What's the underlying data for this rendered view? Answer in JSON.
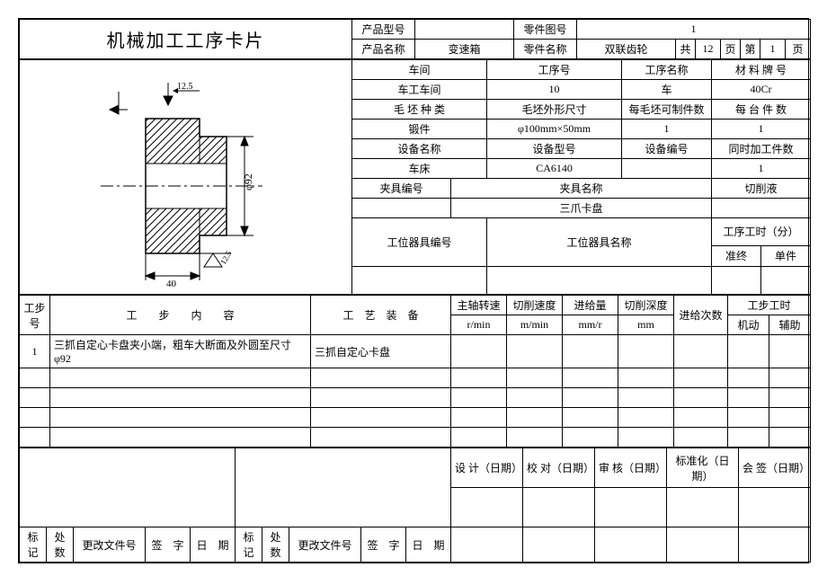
{
  "header": {
    "title": "机械加工工序卡片",
    "r1c1": "产品型号",
    "r1v1": "",
    "r1c2": "零件图号",
    "r1v2": "1",
    "r2c1": "产品名称",
    "r2v1": "变速箱",
    "r2c2": "零件名称",
    "r2v2": "双联齿轮",
    "total_pre": "共",
    "total_pages": "12",
    "page_unit": "页",
    "page_pre": "第",
    "page_no": "1",
    "page_unit2": "页"
  },
  "info": {
    "h_workshop": "车间",
    "h_procno": "工序号",
    "h_procname": "工序名称",
    "h_material": "材 料 牌 号",
    "workshop": "车工车间",
    "procno": "10",
    "procname": "车",
    "material": "40Cr",
    "h_blank": "毛 坯 种 类",
    "h_blanksize": "毛坯外形尺寸",
    "h_perblank": "每毛坯可制件数",
    "h_perunit": "每 台 件 数",
    "blank": "锻件",
    "blanksize": "φ100mm×50mm",
    "perblank": "1",
    "perunit": "1",
    "h_devname": "设备名称",
    "h_devmodel": "设备型号",
    "h_devno": "设备编号",
    "h_concurrent": "同时加工件数",
    "devname": "车床",
    "devmodel": "CA6140",
    "devno": "",
    "concurrent": "1",
    "h_fixno": "夹具编号",
    "h_fixname": "夹具名称",
    "h_coolant": "切削液",
    "fixno": "",
    "fixname": "三爪卡盘",
    "coolant": "",
    "h_holderno": "工位器具编号",
    "h_holdername": "工位器具名称",
    "h_proctime": "工序工时（分）",
    "h_prep": "准终",
    "h_single": "单件",
    "holderno": "",
    "holdername": "",
    "prep": "",
    "single": ""
  },
  "steps_header": {
    "stepno": "工步号",
    "content": "工　　步　　内　　容",
    "tooling": "工　艺　装　备",
    "spindle": "主轴转速",
    "spindle_u": "r/min",
    "cutspeed": "切削速度",
    "cutspeed_u": "m/min",
    "feed": "进给量",
    "feed_u": "mm/r",
    "depth": "切削深度",
    "depth_u": "mm",
    "passes": "进给次数",
    "steptime": "工步工时",
    "st_auto": "机动",
    "st_aux": "辅助"
  },
  "steps": [
    {
      "no": "1",
      "content": "三抓自定心卡盘夹小端，粗车大断面及外圆至尺寸φ92",
      "tooling": "三抓自定心卡盘",
      "spindle": "",
      "cutspeed": "",
      "feed": "",
      "depth": "",
      "passes": "",
      "auto": "",
      "aux": ""
    },
    {
      "no": "",
      "content": "",
      "tooling": "",
      "spindle": "",
      "cutspeed": "",
      "feed": "",
      "depth": "",
      "passes": "",
      "auto": "",
      "aux": ""
    },
    {
      "no": "",
      "content": "",
      "tooling": "",
      "spindle": "",
      "cutspeed": "",
      "feed": "",
      "depth": "",
      "passes": "",
      "auto": "",
      "aux": ""
    },
    {
      "no": "",
      "content": "",
      "tooling": "",
      "spindle": "",
      "cutspeed": "",
      "feed": "",
      "depth": "",
      "passes": "",
      "auto": "",
      "aux": ""
    },
    {
      "no": "",
      "content": "",
      "tooling": "",
      "spindle": "",
      "cutspeed": "",
      "feed": "",
      "depth": "",
      "passes": "",
      "auto": "",
      "aux": ""
    }
  ],
  "footer": {
    "design": "设 计（日期）",
    "check": "校 对（日期）",
    "审核": "审 核（日期）",
    "std": "标准化（日期）",
    "sign": "会 签（日期）",
    "mark": "标记",
    "count": "处数",
    "changefile": "更改文件号",
    "signlab": "签　字",
    "date": "日　期"
  },
  "drawing": {
    "dim_top": "12.5",
    "dim_right": "φ92",
    "dim_bl": "12.5",
    "dim_bottom": "40",
    "colors": {
      "line": "#000000",
      "centerline": "#000000",
      "hatch": "#000000"
    }
  }
}
